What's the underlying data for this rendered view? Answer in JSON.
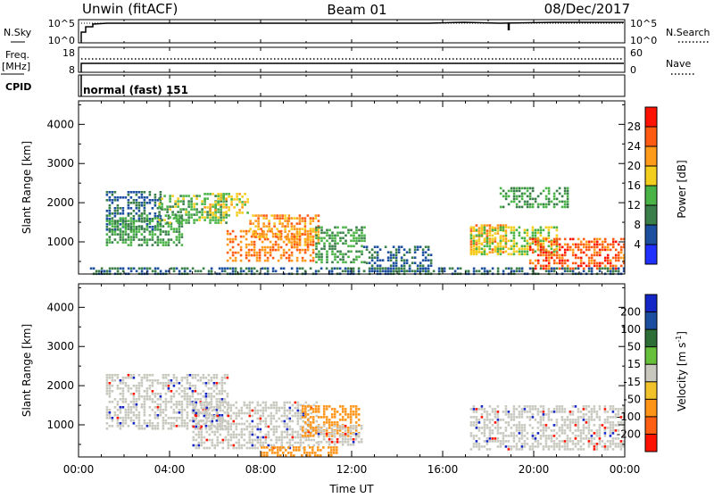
{
  "header": {
    "radar": "Unwin (fitACF)",
    "beam": "Beam 01",
    "date": "08/Dec/2017"
  },
  "noise_panel": {
    "left_label": "N.Sky",
    "left_ticks": [
      "10^5",
      "10^0"
    ],
    "right_ticks": [
      "10^5",
      "10^0"
    ],
    "right_label": "N.Search"
  },
  "freq_panel": {
    "left_label_line1": "Freq.",
    "left_label_line2": "[MHz]",
    "left_ticks": [
      "18",
      "8"
    ],
    "right_ticks": [
      "60",
      "0"
    ],
    "right_label": "Nave"
  },
  "cpid_panel": {
    "label": "CPID",
    "mode": "normal (fast) 151"
  },
  "colors": {
    "power": [
      "#2030ff",
      "#1d4fa0",
      "#3a7f4a",
      "#49b345",
      "#f4ce1e",
      "#ff9a1b",
      "#ff5a12",
      "#ff1200"
    ],
    "velocity": [
      "#1526c6",
      "#1c4ea0",
      "#2d6e36",
      "#66c03b",
      "#c8c8bf",
      "#f1c22a",
      "#ff9417",
      "#ff5f12",
      "#ff1200"
    ]
  },
  "chart_data": [
    {
      "type": "heatmap",
      "name": "power",
      "xlabel": "",
      "ylabel": "Slant Range [km]",
      "xlim": [
        0,
        24
      ],
      "ylim": [
        180,
        4600
      ],
      "x_ticks": [
        "00:00",
        "04:00",
        "08:00",
        "12:00",
        "16:00",
        "20:00",
        "00:00"
      ],
      "y_ticks": [
        "1000",
        "2000",
        "3000",
        "4000"
      ],
      "colorbar": {
        "label": "Power [dB]",
        "min": 0,
        "max": 32,
        "ticks": [
          "4",
          "8",
          "12",
          "16",
          "20",
          "24",
          "28"
        ]
      },
      "regions": [
        {
          "t": [
            1.2,
            3.6
          ],
          "r": [
            1300,
            2300
          ],
          "v": 8
        },
        {
          "t": [
            1.2,
            4.5
          ],
          "r": [
            900,
            1700
          ],
          "v": 12
        },
        {
          "t": [
            3.5,
            6.5
          ],
          "r": [
            1500,
            2200
          ],
          "v": 14
        },
        {
          "t": [
            5.5,
            7.5
          ],
          "r": [
            1700,
            2250
          ],
          "v": 18
        },
        {
          "t": [
            6.5,
            10.3
          ],
          "r": [
            500,
            1300
          ],
          "v": 24
        },
        {
          "t": [
            7.5,
            9.2
          ],
          "r": [
            1100,
            1700
          ],
          "v": 22
        },
        {
          "t": [
            9.2,
            10.6
          ],
          "r": [
            900,
            1700
          ],
          "v": 22
        },
        {
          "t": [
            10.4,
            12.6
          ],
          "r": [
            500,
            1400
          ],
          "v": 12
        },
        {
          "t": [
            12.5,
            15.5
          ],
          "r": [
            250,
            900
          ],
          "v": 8
        },
        {
          "t": [
            17.2,
            18.8
          ],
          "r": [
            700,
            1450
          ],
          "v": 22
        },
        {
          "t": [
            17.2,
            21.0
          ],
          "r": [
            700,
            1400
          ],
          "v": 16
        },
        {
          "t": [
            19.8,
            24.0
          ],
          "r": [
            300,
            1100
          ],
          "v": 26
        },
        {
          "t": [
            18.5,
            21.5
          ],
          "r": [
            1900,
            2400
          ],
          "v": 12
        },
        {
          "t": [
            0.5,
            24.0
          ],
          "r": [
            180,
            350
          ],
          "v": 8
        }
      ]
    },
    {
      "type": "heatmap",
      "name": "velocity",
      "xlabel": "Time UT",
      "ylabel": "Slant Range [km]",
      "xlim": [
        0,
        24
      ],
      "ylim": [
        180,
        4600
      ],
      "x_ticks": [
        "00:00",
        "04:00",
        "08:00",
        "12:00",
        "16:00",
        "20:00",
        "00:00"
      ],
      "y_ticks": [
        "1000",
        "2000",
        "3000",
        "4000"
      ],
      "colorbar": {
        "label": "Velocity [m s^-1]",
        "ticks": [
          "200",
          "100",
          "50",
          "15",
          "-15",
          "-50",
          "-100",
          "-200"
        ]
      },
      "regions": [
        {
          "t": [
            1.2,
            6.5
          ],
          "r": [
            900,
            2300
          ],
          "v": 0
        },
        {
          "t": [
            5.0,
            10.5
          ],
          "r": [
            400,
            1600
          ],
          "v": 0
        },
        {
          "t": [
            9.8,
            12.3
          ],
          "r": [
            700,
            1500
          ],
          "v": -80
        },
        {
          "t": [
            10.5,
            12.5
          ],
          "r": [
            500,
            1000
          ],
          "v": 0
        },
        {
          "t": [
            17.2,
            24.0
          ],
          "r": [
            400,
            1500
          ],
          "v": 0
        },
        {
          "t": [
            8.0,
            11.5
          ],
          "r": [
            180,
            450
          ],
          "v": -60
        }
      ]
    }
  ]
}
